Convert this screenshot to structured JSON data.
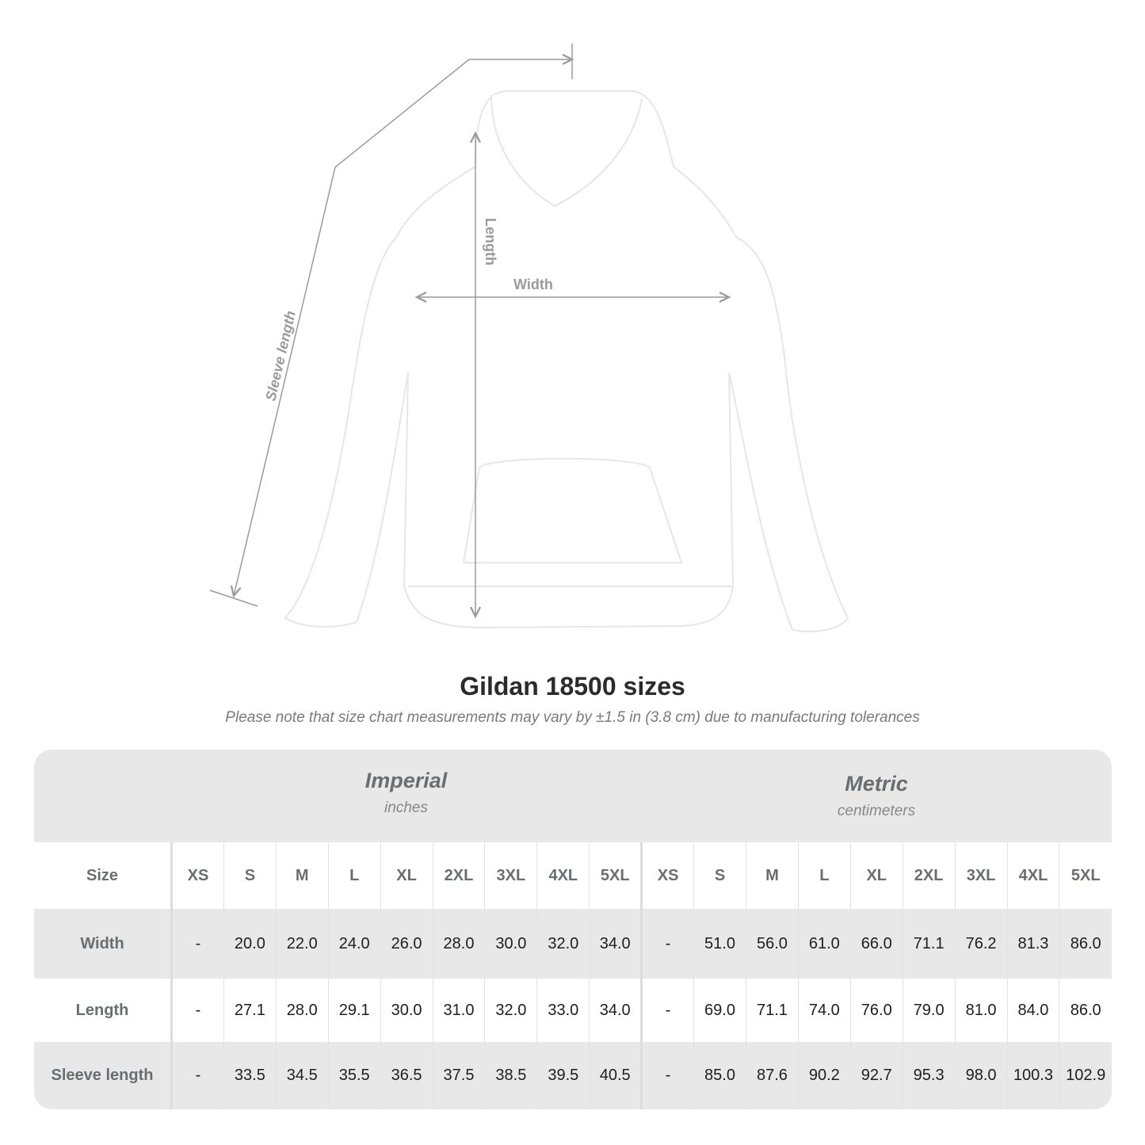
{
  "diagram_labels": {
    "length": "Length",
    "width": "Width",
    "sleeve_length": "Sleeve length"
  },
  "title": "Gildan 18500 sizes",
  "subtitle": "Please note that size chart measurements may vary by ±1.5 in (3.8 cm) due to manufacturing tolerances",
  "imperial": {
    "name": "Imperial",
    "unit": "inches"
  },
  "metric": {
    "name": "Metric",
    "unit": "centimeters"
  },
  "size_label": "Size",
  "sizes": [
    "XS",
    "S",
    "M",
    "L",
    "XL",
    "2XL",
    "3XL",
    "4XL",
    "5XL"
  ],
  "rows": [
    {
      "label": "Width",
      "imperial": [
        "-",
        "20.0",
        "22.0",
        "24.0",
        "26.0",
        "28.0",
        "30.0",
        "32.0",
        "34.0"
      ],
      "metric": [
        "-",
        "51.0",
        "56.0",
        "61.0",
        "66.0",
        "71.1",
        "76.2",
        "81.3",
        "86.0"
      ]
    },
    {
      "label": "Length",
      "imperial": [
        "-",
        "27.1",
        "28.0",
        "29.1",
        "30.0",
        "31.0",
        "32.0",
        "33.0",
        "34.0"
      ],
      "metric": [
        "-",
        "69.0",
        "71.1",
        "74.0",
        "76.0",
        "79.0",
        "81.0",
        "84.0",
        "86.0"
      ]
    },
    {
      "label": "Sleeve length",
      "imperial": [
        "-",
        "33.5",
        "34.5",
        "35.5",
        "36.5",
        "37.5",
        "38.5",
        "39.5",
        "40.5"
      ],
      "metric": [
        "-",
        "85.0",
        "87.6",
        "90.2",
        "92.7",
        "95.3",
        "98.0",
        "100.3",
        "102.9"
      ]
    }
  ],
  "colors": {
    "header_band": "#e8e8e8",
    "label_text": "#6b6e70",
    "measure_line": "#9a9a9a"
  }
}
